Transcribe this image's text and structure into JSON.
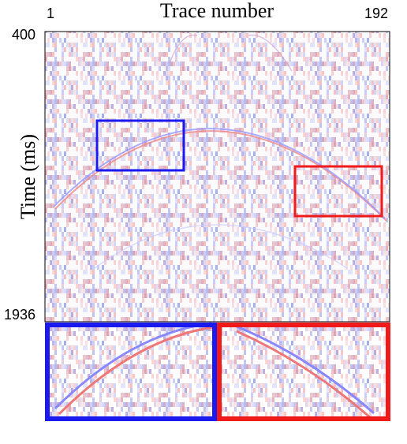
{
  "chart_data": {
    "type": "image",
    "title": "Trace number",
    "y_label": "Time (ms)",
    "xlim": [
      1,
      192
    ],
    "xticks": [
      1,
      192
    ],
    "ylim": [
      400,
      1936
    ],
    "yticks": [
      400,
      1936
    ]
  }
}
